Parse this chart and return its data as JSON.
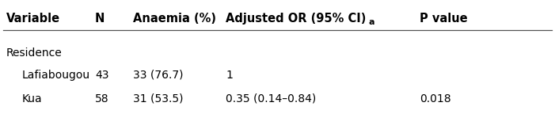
{
  "col_headers": [
    "Variable",
    "N",
    "Anaemia (%)",
    "Adjusted OR (95% CI)",
    "P value"
  ],
  "col_header_superscript": "a",
  "header_fontsize": 10.5,
  "section_header": "Residence",
  "rows": [
    {
      "variable": "Lafiabougou",
      "n": "43",
      "anaemia": "33 (76.7)",
      "or": "1",
      "pvalue": ""
    },
    {
      "variable": "Kua",
      "n": "58",
      "anaemia": "31 (53.5)",
      "or": "0.35 (0.14–0.84)",
      "pvalue": "0.018"
    }
  ],
  "font_size": 10,
  "font_family": "DejaVu Sans",
  "background_color": "#ffffff",
  "text_color": "#000000",
  "line_color": "#555555",
  "figsize": [
    7.01,
    1.68
  ],
  "dpi": 100
}
